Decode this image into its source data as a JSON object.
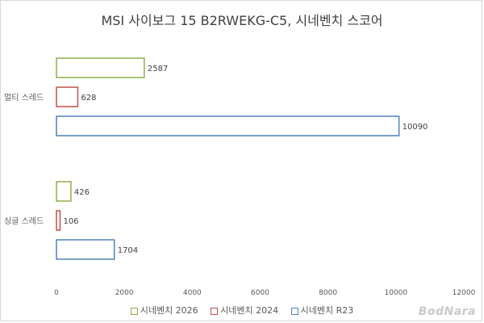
{
  "chart_data": {
    "type": "bar",
    "orientation": "horizontal",
    "title": "MSI 사이보그 15 B2RWEKG-C5, 시네벤치 스코어",
    "categories": [
      "멀티 스레드",
      "싱글 스레드"
    ],
    "series": [
      {
        "name": "시네벤치 2026",
        "values": [
          2587,
          426
        ],
        "color": "#8db04a"
      },
      {
        "name": "시네벤치 2024",
        "values": [
          628,
          106
        ],
        "color": "#c0504d"
      },
      {
        "name": "시네벤치 R23",
        "values": [
          10090,
          1704
        ],
        "color": "#4f81bd"
      }
    ],
    "xlim": [
      0,
      12000
    ],
    "xticks": [
      0,
      2000,
      4000,
      6000,
      8000,
      10000,
      12000
    ],
    "grid": false,
    "legend_position": "bottom"
  },
  "watermark": "BodNara"
}
